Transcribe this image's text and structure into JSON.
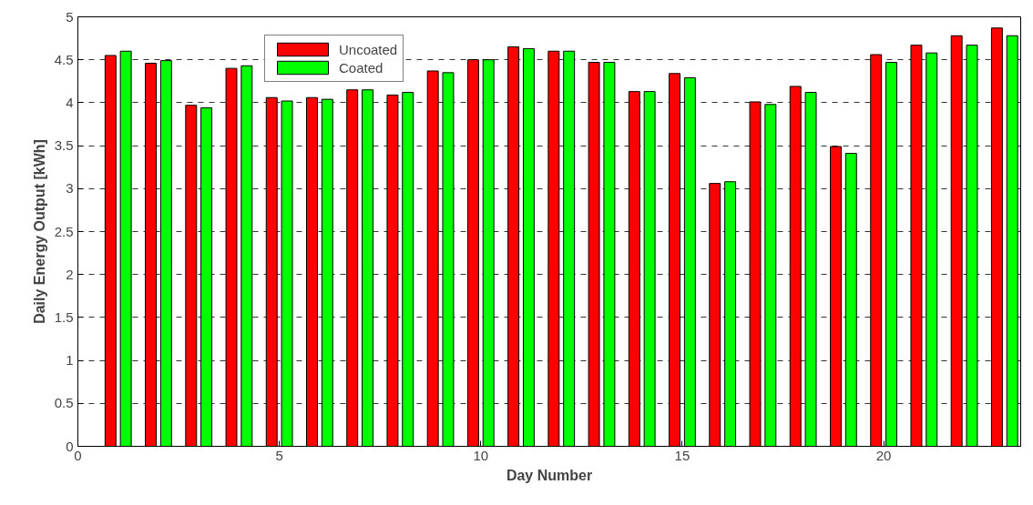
{
  "chart_data": {
    "type": "bar",
    "xlabel": "Day Number",
    "ylabel": "Daily Energy Output [kWh]",
    "x": [
      1,
      2,
      3,
      4,
      5,
      6,
      7,
      8,
      9,
      10,
      11,
      12,
      13,
      14,
      15,
      16,
      17,
      18,
      19,
      20,
      21,
      22,
      23
    ],
    "series": [
      {
        "name": "Uncoated",
        "color": "#ff0000",
        "values": [
          4.55,
          4.46,
          3.97,
          4.4,
          4.06,
          4.06,
          4.15,
          4.09,
          4.37,
          4.5,
          4.65,
          4.6,
          4.47,
          4.13,
          4.34,
          3.06,
          4.01,
          4.19,
          3.49,
          4.56,
          4.67,
          4.78,
          4.87
        ]
      },
      {
        "name": "Coated",
        "color": "#00ff00",
        "values": [
          4.6,
          4.49,
          3.94,
          4.43,
          4.02,
          4.04,
          4.15,
          4.12,
          4.35,
          4.5,
          4.63,
          4.6,
          4.47,
          4.13,
          4.29,
          3.08,
          3.98,
          4.12,
          3.41,
          4.47,
          4.58,
          4.67,
          4.78
        ]
      }
    ],
    "xlim": [
      0,
      23.4
    ],
    "xticks": [
      0,
      5,
      10,
      15,
      20
    ],
    "ylim": [
      0,
      5
    ],
    "yticks": [
      0,
      0.5,
      1,
      1.5,
      2,
      2.5,
      3,
      3.5,
      4,
      4.5,
      5
    ],
    "grid": "y",
    "legend": "top left"
  }
}
